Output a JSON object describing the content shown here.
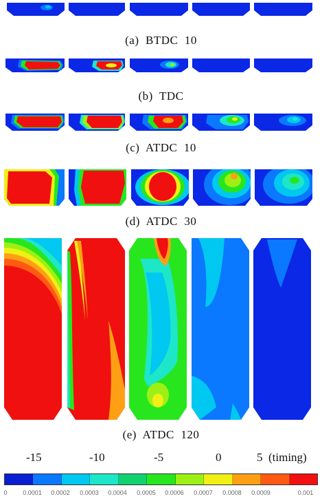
{
  "captions": [
    "(a)  BTDC  10",
    "(b)  TDC",
    "(c)  ATDC  10",
    "(d)  ATDC  30",
    "(e)  ATDC  120"
  ],
  "timing_labels": [
    "-15",
    "-10",
    "-5",
    "0",
    "5  (timing)"
  ],
  "colorbar": {
    "ticks": [
      "0",
      "0.0001",
      "0.0002",
      "0.0003",
      "0.0004",
      "0.0005",
      "0.0006",
      "0.0007",
      "0.0008",
      "0.0009",
      "0.001"
    ],
    "colors": [
      "#0a1ed2",
      "#0a78ff",
      "#00c8f0",
      "#1ee6c8",
      "#10d26e",
      "#28e61e",
      "#9ef014",
      "#f0f014",
      "#ffa014",
      "#ff5a14",
      "#f01010"
    ]
  },
  "palette": {
    "background": "#ffffff",
    "deep_blue": "#0a28e6",
    "red": "#f01010"
  }
}
